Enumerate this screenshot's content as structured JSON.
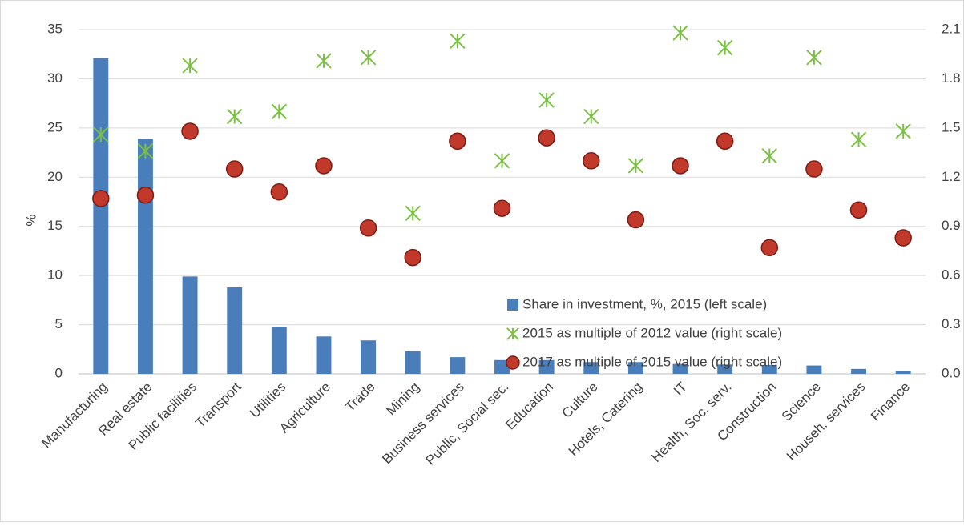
{
  "chart_data": {
    "type": "combo",
    "y_label": "%",
    "categories": [
      "Manufacturing",
      "Real estate",
      "Public facilities",
      "Transport",
      "Utilities",
      "Agriculture",
      "Trade",
      "Mining",
      "Business services",
      "Public, Social sec.",
      "Education",
      "Culture",
      "Hotels, Catering",
      "IT",
      "Health, Soc. serv.",
      "Construction",
      "Science",
      "Househ. services",
      "Finance"
    ],
    "series": [
      {
        "name": "Share in investment, %, 2015 (left scale)",
        "type": "bar",
        "axis": "y",
        "color": "#4a7ebb",
        "values": [
          32.1,
          23.9,
          9.9,
          8.8,
          4.8,
          3.8,
          3.4,
          2.3,
          1.7,
          1.4,
          1.4,
          1.2,
          1.2,
          1.0,
          0.95,
          0.9,
          0.85,
          0.5,
          0.25
        ]
      },
      {
        "name": "2015 as multiple of 2012 value (right scale)",
        "type": "scatter",
        "marker": "asterisk",
        "axis": "y2",
        "color": "#7ac143",
        "values": [
          1.46,
          1.36,
          1.88,
          1.57,
          1.6,
          1.91,
          1.93,
          0.98,
          2.03,
          1.3,
          1.67,
          1.57,
          1.27,
          2.08,
          1.99,
          1.33,
          1.93,
          1.43,
          1.48
        ]
      },
      {
        "name": "2017 as multiple of 2015 value (right scale)",
        "type": "scatter",
        "marker": "circle",
        "axis": "y2",
        "color": "#c0392b",
        "values": [
          1.07,
          1.09,
          1.48,
          1.25,
          1.11,
          1.27,
          0.89,
          0.71,
          1.42,
          1.01,
          1.44,
          1.3,
          0.94,
          1.27,
          1.42,
          0.77,
          1.25,
          1.0,
          0.83
        ]
      }
    ],
    "ylim": [
      0,
      35
    ],
    "yticks": [
      0,
      5,
      10,
      15,
      20,
      25,
      30,
      35
    ],
    "y2lim": [
      0,
      2.1
    ],
    "y2ticks": [
      {
        "value": 0,
        "label": "0.0"
      },
      0.3,
      0.6,
      0.9,
      1.2,
      1.5,
      1.8,
      2.1
    ],
    "grid": true
  }
}
